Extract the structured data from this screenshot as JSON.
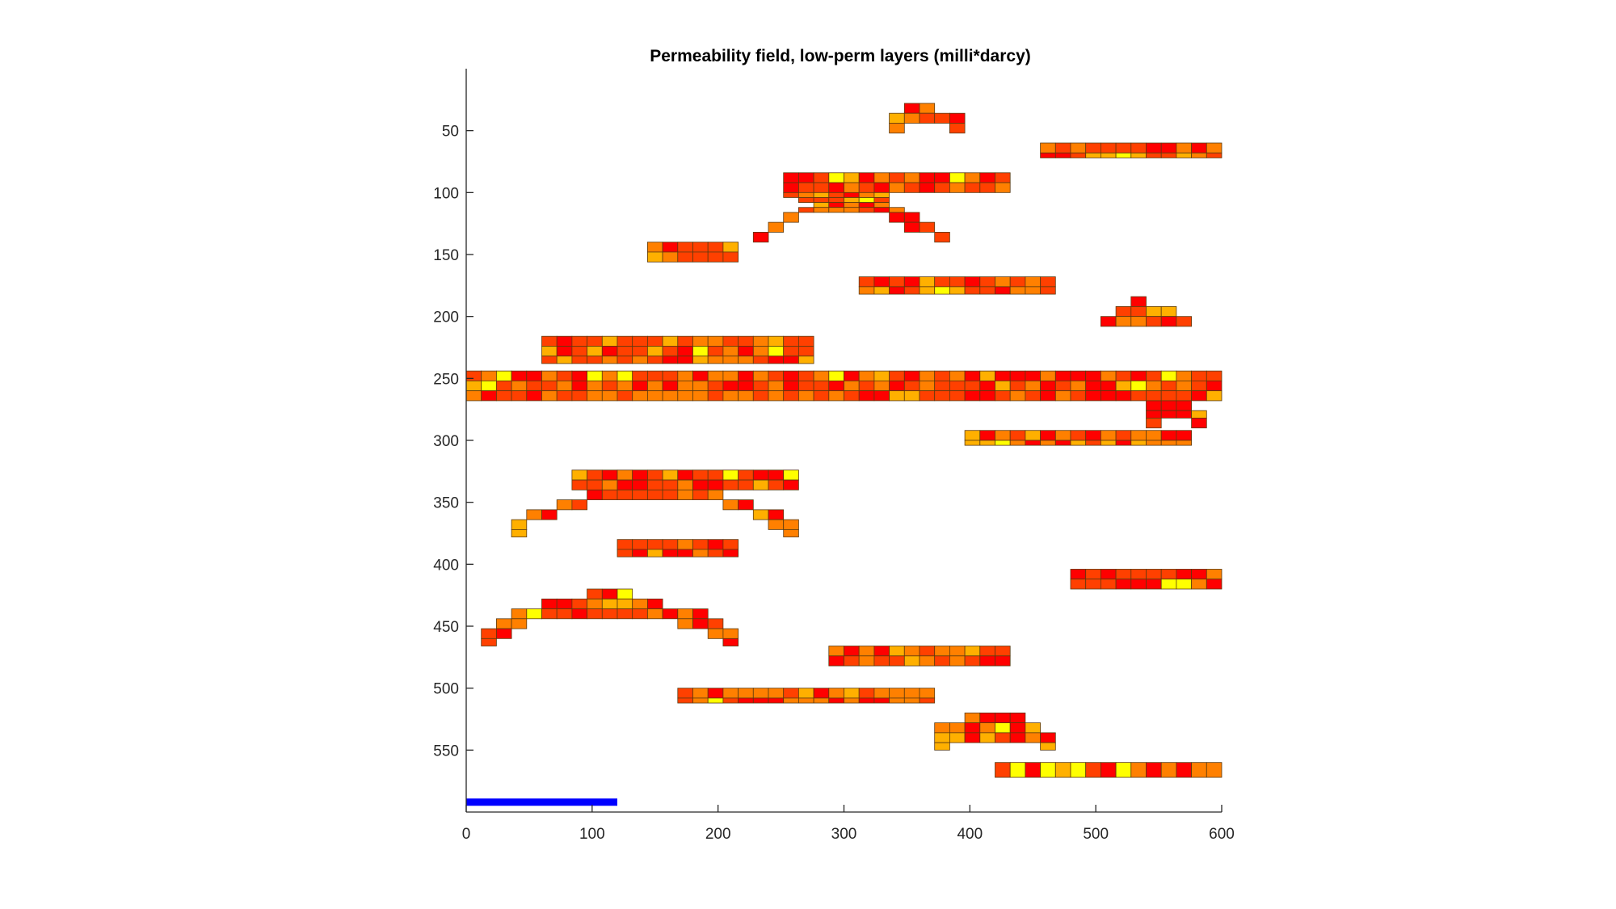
{
  "chart_data": {
    "type": "heatmap",
    "title": "Permeability field, low-perm layers (milli*darcy)",
    "xlabel": "",
    "ylabel": "",
    "xlim": [
      0,
      600
    ],
    "ylim": [
      0,
      600
    ],
    "y_reversed": true,
    "cell_size": [
      12,
      8
    ],
    "x_ticks": [
      0,
      100,
      200,
      300,
      400,
      500,
      600
    ],
    "y_ticks": [
      50,
      100,
      150,
      200,
      250,
      300,
      350,
      400,
      450,
      500,
      550
    ],
    "colormap": [
      "#ff0000",
      "#ff4000",
      "#ff8000",
      "#ffb000",
      "#ffff00"
    ],
    "grid": false,
    "layers": [
      {
        "x": [
          348,
          372
        ],
        "y": [
          28,
          36
        ]
      },
      {
        "x": [
          336,
          396
        ],
        "y": [
          36,
          44
        ]
      },
      {
        "x": [
          336,
          348
        ],
        "y": [
          44,
          52
        ]
      },
      {
        "x": [
          384,
          396
        ],
        "y": [
          44,
          52
        ]
      },
      {
        "x": [
          456,
          600
        ],
        "y": [
          60,
          68
        ]
      },
      {
        "x": [
          456,
          600
        ],
        "y": [
          68,
          72
        ]
      },
      {
        "x": [
          252,
          432
        ],
        "y": [
          84,
          92
        ]
      },
      {
        "x": [
          252,
          432
        ],
        "y": [
          92,
          100
        ]
      },
      {
        "x": [
          252,
          336
        ],
        "y": [
          100,
          104
        ]
      },
      {
        "x": [
          264,
          336
        ],
        "y": [
          104,
          108
        ]
      },
      {
        "x": [
          276,
          336
        ],
        "y": [
          108,
          112
        ]
      },
      {
        "x": [
          264,
          348
        ],
        "y": [
          112,
          116
        ]
      },
      {
        "x": [
          252,
          264
        ],
        "y": [
          116,
          124
        ]
      },
      {
        "x": [
          336,
          360
        ],
        "y": [
          116,
          124
        ]
      },
      {
        "x": [
          240,
          252
        ],
        "y": [
          124,
          132
        ]
      },
      {
        "x": [
          348,
          372
        ],
        "y": [
          124,
          132
        ]
      },
      {
        "x": [
          228,
          240
        ],
        "y": [
          132,
          140
        ]
      },
      {
        "x": [
          372,
          384
        ],
        "y": [
          132,
          140
        ]
      },
      {
        "x": [
          144,
          216
        ],
        "y": [
          140,
          148
        ]
      },
      {
        "x": [
          144,
          216
        ],
        "y": [
          148,
          156
        ]
      },
      {
        "x": [
          312,
          468
        ],
        "y": [
          168,
          176
        ]
      },
      {
        "x": [
          312,
          468
        ],
        "y": [
          176,
          182
        ]
      },
      {
        "x": [
          528,
          540
        ],
        "y": [
          184,
          192
        ]
      },
      {
        "x": [
          516,
          564
        ],
        "y": [
          192,
          200
        ]
      },
      {
        "x": [
          504,
          576
        ],
        "y": [
          200,
          208
        ]
      },
      {
        "x": [
          60,
          276
        ],
        "y": [
          216,
          224
        ]
      },
      {
        "x": [
          60,
          276
        ],
        "y": [
          224,
          232
        ]
      },
      {
        "x": [
          60,
          276
        ],
        "y": [
          232,
          238
        ]
      },
      {
        "x": [
          0,
          600
        ],
        "y": [
          244,
          252
        ]
      },
      {
        "x": [
          0,
          600
        ],
        "y": [
          252,
          260
        ]
      },
      {
        "x": [
          0,
          600
        ],
        "y": [
          260,
          268
        ]
      },
      {
        "x": [
          540,
          576
        ],
        "y": [
          268,
          276
        ]
      },
      {
        "x": [
          540,
          588
        ],
        "y": [
          276,
          282
        ]
      },
      {
        "x": [
          540,
          552
        ],
        "y": [
          282,
          290
        ]
      },
      {
        "x": [
          576,
          588
        ],
        "y": [
          282,
          290
        ]
      },
      {
        "x": [
          396,
          576
        ],
        "y": [
          292,
          300
        ]
      },
      {
        "x": [
          396,
          576
        ],
        "y": [
          300,
          304
        ]
      },
      {
        "x": [
          84,
          264
        ],
        "y": [
          324,
          332
        ]
      },
      {
        "x": [
          84,
          264
        ],
        "y": [
          332,
          340
        ]
      },
      {
        "x": [
          96,
          204
        ],
        "y": [
          340,
          348
        ]
      },
      {
        "x": [
          72,
          96
        ],
        "y": [
          348,
          356
        ]
      },
      {
        "x": [
          204,
          228
        ],
        "y": [
          348,
          356
        ]
      },
      {
        "x": [
          48,
          72
        ],
        "y": [
          356,
          364
        ]
      },
      {
        "x": [
          228,
          252
        ],
        "y": [
          356,
          364
        ]
      },
      {
        "x": [
          36,
          48
        ],
        "y": [
          364,
          372
        ]
      },
      {
        "x": [
          240,
          264
        ],
        "y": [
          364,
          372
        ]
      },
      {
        "x": [
          36,
          48
        ],
        "y": [
          372,
          378
        ]
      },
      {
        "x": [
          252,
          264
        ],
        "y": [
          372,
          378
        ]
      },
      {
        "x": [
          120,
          216
        ],
        "y": [
          380,
          388
        ]
      },
      {
        "x": [
          120,
          216
        ],
        "y": [
          388,
          394
        ]
      },
      {
        "x": [
          480,
          600
        ],
        "y": [
          404,
          412
        ]
      },
      {
        "x": [
          480,
          600
        ],
        "y": [
          412,
          420
        ]
      },
      {
        "x": [
          96,
          132
        ],
        "y": [
          420,
          428
        ]
      },
      {
        "x": [
          60,
          156
        ],
        "y": [
          428,
          436
        ]
      },
      {
        "x": [
          36,
          192
        ],
        "y": [
          436,
          444
        ]
      },
      {
        "x": [
          24,
          48
        ],
        "y": [
          444,
          452
        ]
      },
      {
        "x": [
          168,
          204
        ],
        "y": [
          444,
          452
        ]
      },
      {
        "x": [
          12,
          36
        ],
        "y": [
          452,
          460
        ]
      },
      {
        "x": [
          192,
          216
        ],
        "y": [
          452,
          460
        ]
      },
      {
        "x": [
          12,
          24
        ],
        "y": [
          460,
          466
        ]
      },
      {
        "x": [
          204,
          216
        ],
        "y": [
          460,
          466
        ]
      },
      {
        "x": [
          288,
          432
        ],
        "y": [
          466,
          474
        ]
      },
      {
        "x": [
          288,
          432
        ],
        "y": [
          474,
          482
        ]
      },
      {
        "x": [
          168,
          372
        ],
        "y": [
          500,
          508
        ]
      },
      {
        "x": [
          168,
          372
        ],
        "y": [
          508,
          512
        ]
      },
      {
        "x": [
          396,
          444
        ],
        "y": [
          520,
          528
        ]
      },
      {
        "x": [
          372,
          456
        ],
        "y": [
          528,
          536
        ]
      },
      {
        "x": [
          372,
          468
        ],
        "y": [
          536,
          544
        ]
      },
      {
        "x": [
          372,
          384
        ],
        "y": [
          544,
          550
        ]
      },
      {
        "x": [
          456,
          468
        ],
        "y": [
          544,
          550
        ]
      },
      {
        "x": [
          420,
          600
        ],
        "y": [
          560,
          572
        ]
      }
    ],
    "well": {
      "x": [
        0,
        120
      ],
      "y": 592,
      "color": "#0000ff"
    }
  }
}
